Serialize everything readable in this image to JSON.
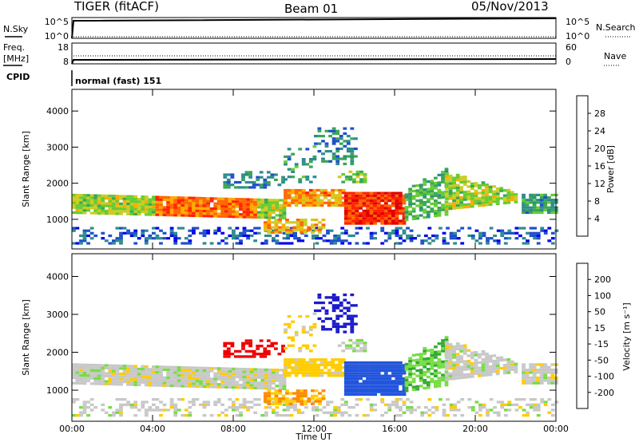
{
  "header": {
    "title": "TIGER (fitACF)",
    "beam": "Beam 01",
    "date": "05/Nov/2013"
  },
  "top_panels": {
    "nsky_label": "N.Sky",
    "nsearch_label": "N.Search",
    "nsky_ticks": [
      "10^5",
      "10^0"
    ],
    "nsearch_ticks": [
      "10^5",
      "10^0"
    ],
    "freq_label_1": "Freq.",
    "freq_label_2": "[MHz]",
    "freq_ticks": [
      "18",
      "8"
    ],
    "nave_label": "Nave",
    "nave_ticks": [
      "60",
      "0"
    ],
    "cpid_label": "CPID",
    "cpid_value": "normal (fast) 151"
  },
  "chart_data": [
    {
      "type": "heatmap",
      "name": "power",
      "xlabel": "",
      "ylabel": "Slant Range [km]",
      "x_range_hours": [
        0,
        24
      ],
      "ylim": [
        180,
        4600
      ],
      "yticks": [
        "4000",
        "3000",
        "2000",
        "1000"
      ],
      "colorbar": {
        "label": "Power [dB]",
        "ticks": [
          "28",
          "24",
          "20",
          "16",
          "12",
          "8",
          "4"
        ],
        "range": [
          0,
          32
        ],
        "colors": [
          "#0000ee",
          "#1e50c8",
          "#2e8c8c",
          "#3aa655",
          "#66cc33",
          "#cccc22",
          "#ffaa00",
          "#ff6600",
          "#ff2200",
          "#dd0000"
        ]
      }
    },
    {
      "type": "heatmap",
      "name": "velocity",
      "xlabel": "Time UT",
      "ylabel": "Slant Range [km]",
      "x_range_hours": [
        0,
        24
      ],
      "ylim": [
        180,
        4600
      ],
      "yticks": [
        "4000",
        "3000",
        "2000",
        "1000"
      ],
      "xticks": [
        "00:00",
        "04:00",
        "08:00",
        "12:00",
        "16:00",
        "20:00",
        "00:00"
      ],
      "colorbar": {
        "label": "Velocity [m s⁻¹]",
        "ticks": [
          "200",
          "100",
          "50",
          "15",
          "-15",
          "-50",
          "-100",
          "-200"
        ],
        "colors": [
          "#1a1acc",
          "#2255dd",
          "#226633",
          "#33aa33",
          "#77dd44",
          "#c8c8c8",
          "#ffcc00",
          "#ff8800",
          "#ff4400",
          "#ee0000"
        ]
      }
    }
  ]
}
